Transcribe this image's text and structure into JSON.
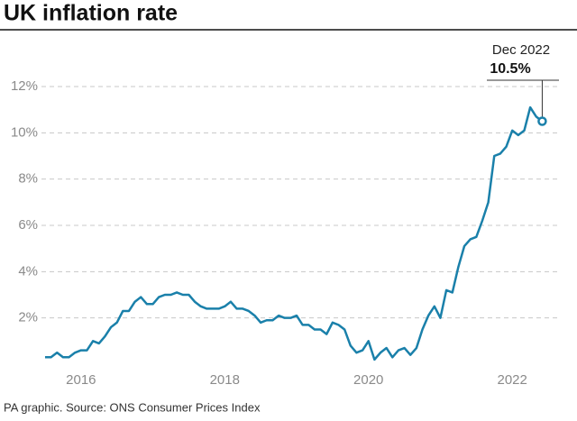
{
  "chart_data": {
    "type": "line",
    "title": "UK inflation rate",
    "source": "PA graphic. Source: ONS Consumer Prices Index",
    "x": [
      2016,
      2016.083,
      2016.167,
      2016.25,
      2016.333,
      2016.417,
      2016.5,
      2016.583,
      2016.667,
      2016.75,
      2016.833,
      2016.917,
      2017,
      2017.083,
      2017.167,
      2017.25,
      2017.333,
      2017.417,
      2017.5,
      2017.583,
      2017.667,
      2017.75,
      2017.833,
      2017.917,
      2018,
      2018.083,
      2018.167,
      2018.25,
      2018.333,
      2018.417,
      2018.5,
      2018.583,
      2018.667,
      2018.75,
      2018.833,
      2018.917,
      2019,
      2019.083,
      2019.167,
      2019.25,
      2019.333,
      2019.417,
      2019.5,
      2019.583,
      2019.667,
      2019.75,
      2019.833,
      2019.917,
      2020,
      2020.083,
      2020.167,
      2020.25,
      2020.333,
      2020.417,
      2020.5,
      2020.583,
      2020.667,
      2020.75,
      2020.833,
      2020.917,
      2021,
      2021.083,
      2021.167,
      2021.25,
      2021.333,
      2021.417,
      2021.5,
      2021.583,
      2021.667,
      2021.75,
      2021.833,
      2021.917,
      2022,
      2022.083,
      2022.167,
      2022.25,
      2022.333,
      2022.417,
      2022.5,
      2022.583,
      2022.667,
      2022.75,
      2022.833,
      2022.917
    ],
    "series": [
      {
        "name": "CPI",
        "color": "#1a80aa",
        "values": [
          0.3,
          0.3,
          0.5,
          0.3,
          0.3,
          0.5,
          0.6,
          0.6,
          1.0,
          0.9,
          1.2,
          1.6,
          1.8,
          2.3,
          2.3,
          2.7,
          2.9,
          2.6,
          2.6,
          2.9,
          3.0,
          3.0,
          3.1,
          3.0,
          3.0,
          2.7,
          2.5,
          2.4,
          2.4,
          2.4,
          2.5,
          2.7,
          2.4,
          2.4,
          2.3,
          2.1,
          1.8,
          1.9,
          1.9,
          2.1,
          2.0,
          2.0,
          2.1,
          1.7,
          1.7,
          1.5,
          1.5,
          1.3,
          1.8,
          1.7,
          1.5,
          0.8,
          0.5,
          0.6,
          1.0,
          0.2,
          0.5,
          0.7,
          0.3,
          0.6,
          0.7,
          0.4,
          0.7,
          1.5,
          2.1,
          2.5,
          2.0,
          3.2,
          3.1,
          4.2,
          5.1,
          5.4,
          5.5,
          6.2,
          7.0,
          9.0,
          9.1,
          9.4,
          10.1,
          9.9,
          10.1,
          11.1,
          10.7,
          10.5
        ]
      }
    ],
    "annotation": {
      "text": "Dec 2022",
      "value_label": "10.5%"
    },
    "xlim": [
      2015.875,
      2023.15
    ],
    "xticks": [
      {
        "value": 2016.5,
        "label": "2016"
      },
      {
        "value": 2018.5,
        "label": "2018"
      },
      {
        "value": 2020.5,
        "label": "2020"
      },
      {
        "value": 2022.5,
        "label": "2022"
      }
    ],
    "ylim": [
      0,
      12
    ],
    "yticks": [
      {
        "value": 2,
        "label": "2%"
      },
      {
        "value": 4,
        "label": "4%"
      },
      {
        "value": 6,
        "label": "6%"
      },
      {
        "value": 8,
        "label": "8%"
      },
      {
        "value": 10,
        "label": "10%"
      },
      {
        "value": 12,
        "label": "12%"
      }
    ],
    "grid": true
  }
}
